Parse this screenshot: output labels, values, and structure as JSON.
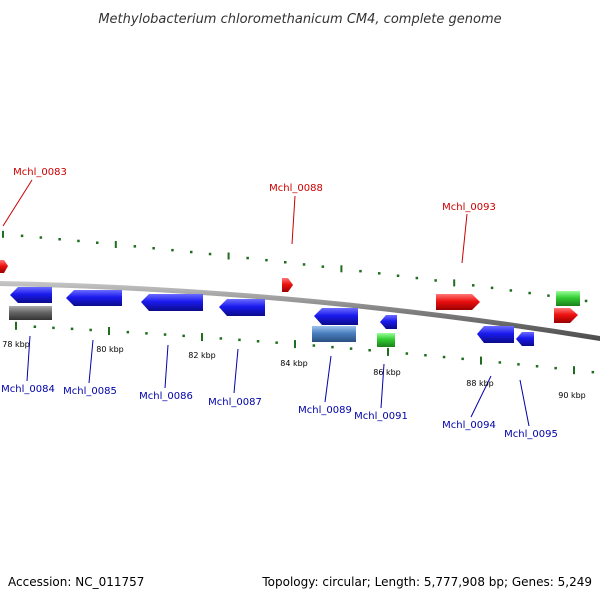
{
  "title": "Methylobacterium chloromethanicum CM4, complete genome",
  "footer": {
    "accession": "Accession: NC_011757",
    "summary": "Topology: circular; Length: 5,777,908 bp; Genes: 5,249"
  },
  "scale_labels": [
    "78 kbp",
    "80 kbp",
    "82 kbp",
    "84 kbp",
    "86 kbp",
    "88 kbp",
    "90 kbp"
  ],
  "gene_labels": {
    "g0083": "Mchl_0083",
    "g0084": "Mchl_0084",
    "g0085": "Mchl_0085",
    "g0086": "Mchl_0086",
    "g0087": "Mchl_0087",
    "g0088": "Mchl_0088",
    "g0089": "Mchl_0089",
    "g0091": "Mchl_0091",
    "g0093": "Mchl_0093",
    "g0094": "Mchl_0094",
    "g0095": "Mchl_0095"
  },
  "colors": {
    "forward_gene": "#ee1111",
    "reverse_gene": "#1a1aee",
    "rna_gene": "#33cc33",
    "pseudo_gene": "#666666",
    "other_gene": "#4a7fbf",
    "label_forward": "#cc0000",
    "label_reverse": "#0000aa",
    "tick": "#1f6e1f",
    "backbone": "#808080"
  }
}
